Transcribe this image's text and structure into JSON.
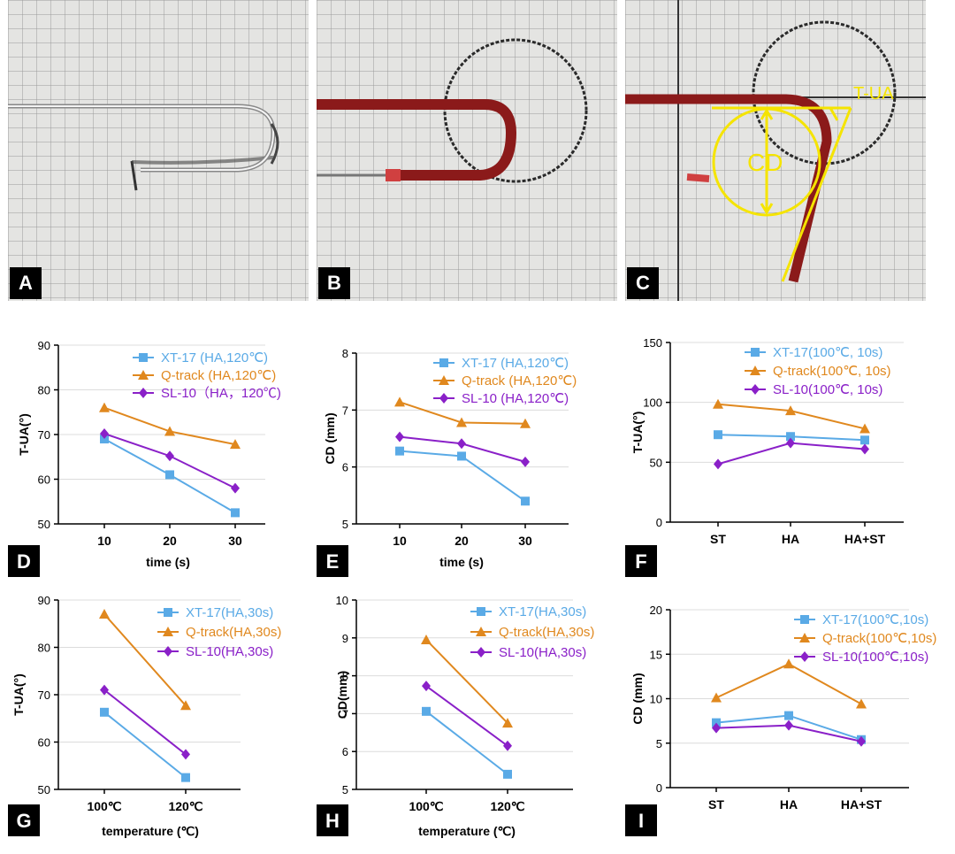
{
  "photos": [
    {
      "tag": "A"
    },
    {
      "tag": "B"
    },
    {
      "tag": "C",
      "annotations": {
        "tua": "T-UA",
        "cd": "CD"
      }
    }
  ],
  "colors": {
    "xt17": "#5aaae6",
    "qtrack": "#e0881e",
    "sl10": "#8a20c8",
    "annotation": "#f5e400",
    "catheter": "#8b1a1a"
  },
  "chart_data": [
    {
      "panel": "D",
      "type": "line",
      "x": [
        10,
        20,
        30
      ],
      "xticks": [
        "10",
        "20",
        "30"
      ],
      "xlabel": "time (s)",
      "ylabel": "T-UA(°)",
      "ylim": [
        50,
        90
      ],
      "yticks": [
        "50",
        "60",
        "70",
        "80",
        "90"
      ],
      "legend_position": "top-right",
      "series": [
        {
          "name": "XT-17 (HA,120℃)",
          "values": [
            69,
            61,
            52.5
          ],
          "color": "#5aaae6",
          "marker": "square"
        },
        {
          "name": "Q-track (HA,120℃)",
          "values": [
            76,
            70.7,
            67.8
          ],
          "color": "#e0881e",
          "marker": "triangle"
        },
        {
          "name": "SL-10（HA，120℃)",
          "values": [
            70.2,
            65.2,
            58
          ],
          "color": "#8a20c8",
          "marker": "diamond"
        }
      ]
    },
    {
      "panel": "E",
      "type": "line",
      "x": [
        10,
        20,
        30
      ],
      "xticks": [
        "10",
        "20",
        "30"
      ],
      "xlabel": "time (s)",
      "ylabel": "CD (mm)",
      "ylim": [
        5,
        8
      ],
      "yticks": [
        "5",
        "6",
        "7",
        "8"
      ],
      "legend_position": "top-right",
      "series": [
        {
          "name": "XT-17 (HA,120℃)",
          "values": [
            6.28,
            6.19,
            5.4
          ],
          "color": "#5aaae6",
          "marker": "square"
        },
        {
          "name": "Q-track (HA,120℃)",
          "values": [
            7.14,
            6.78,
            6.76
          ],
          "color": "#e0881e",
          "marker": "triangle"
        },
        {
          "name": "SL-10 (HA,120℃)",
          "values": [
            6.53,
            6.41,
            6.09
          ],
          "color": "#8a20c8",
          "marker": "diamond"
        }
      ]
    },
    {
      "panel": "F",
      "type": "line",
      "x": [
        "ST",
        "HA",
        "HA+ST"
      ],
      "xticks": [
        "ST",
        "HA",
        "HA+ST"
      ],
      "xlabel": "",
      "ylabel": "T-UA(°)",
      "ylim": [
        0,
        150
      ],
      "yticks": [
        "0",
        "50",
        "100",
        "150"
      ],
      "legend_position": "top-right",
      "series": [
        {
          "name": "XT-17(100℃, 10s)",
          "values": [
            73,
            71.5,
            68.5
          ],
          "color": "#5aaae6",
          "marker": "square"
        },
        {
          "name": "Q-track(100℃, 10s)",
          "values": [
            98.5,
            93,
            78
          ],
          "color": "#e0881e",
          "marker": "triangle"
        },
        {
          "name": "SL-10(100℃, 10s)",
          "values": [
            48.5,
            66,
            61
          ],
          "color": "#8a20c8",
          "marker": "diamond"
        }
      ]
    },
    {
      "panel": "G",
      "type": "line",
      "x": [
        "100℃",
        "120℃"
      ],
      "xticks": [
        "100℃",
        "120℃"
      ],
      "xlabel": "temperature (℃)",
      "ylabel": "T-UA(°)",
      "ylim": [
        50,
        90
      ],
      "yticks": [
        "50",
        "60",
        "70",
        "80",
        "90"
      ],
      "legend_position": "top-right",
      "series": [
        {
          "name": "XT-17(HA,30s)",
          "values": [
            66.3,
            52.5
          ],
          "color": "#5aaae6",
          "marker": "square"
        },
        {
          "name": "Q-track(HA,30s)",
          "values": [
            87,
            67.7
          ],
          "color": "#e0881e",
          "marker": "triangle"
        },
        {
          "name": "SL-10(HA,30s)",
          "values": [
            71,
            57.4
          ],
          "color": "#8a20c8",
          "marker": "diamond"
        }
      ]
    },
    {
      "panel": "H",
      "type": "line",
      "x": [
        "100℃",
        "120℃"
      ],
      "xticks": [
        "100℃",
        "120℃"
      ],
      "xlabel": "temperature (℃)",
      "ylabel": "CD(mm)",
      "ylim": [
        5,
        10
      ],
      "yticks": [
        "5",
        "6",
        "7",
        "8",
        "9",
        "10"
      ],
      "legend_position": "top-right",
      "series": [
        {
          "name": "XT-17(HA,30s)",
          "values": [
            7.06,
            5.4
          ],
          "color": "#5aaae6",
          "marker": "square"
        },
        {
          "name": "Q-track(HA,30s)",
          "values": [
            8.95,
            6.75
          ],
          "color": "#e0881e",
          "marker": "triangle"
        },
        {
          "name": "SL-10(HA,30s)",
          "values": [
            7.73,
            6.15
          ],
          "color": "#8a20c8",
          "marker": "diamond"
        }
      ]
    },
    {
      "panel": "I",
      "type": "line",
      "x": [
        "ST",
        "HA",
        "HA+ST"
      ],
      "xticks": [
        "ST",
        "HA",
        "HA+ST"
      ],
      "xlabel": "",
      "ylabel": "CD (mm)",
      "ylim": [
        0,
        20
      ],
      "yticks": [
        "0",
        "5",
        "10",
        "15",
        "20"
      ],
      "legend_position": "top-right",
      "series": [
        {
          "name": "XT-17(100℃,10s)",
          "values": [
            7.3,
            8.1,
            5.4
          ],
          "color": "#5aaae6",
          "marker": "square"
        },
        {
          "name": "Q-track(100℃,10s)",
          "values": [
            10.1,
            13.9,
            9.4
          ],
          "color": "#e0881e",
          "marker": "triangle"
        },
        {
          "name": "SL-10(100℃,10s)",
          "values": [
            6.7,
            7,
            5.2
          ],
          "color": "#8a20c8",
          "marker": "diamond"
        }
      ]
    }
  ]
}
